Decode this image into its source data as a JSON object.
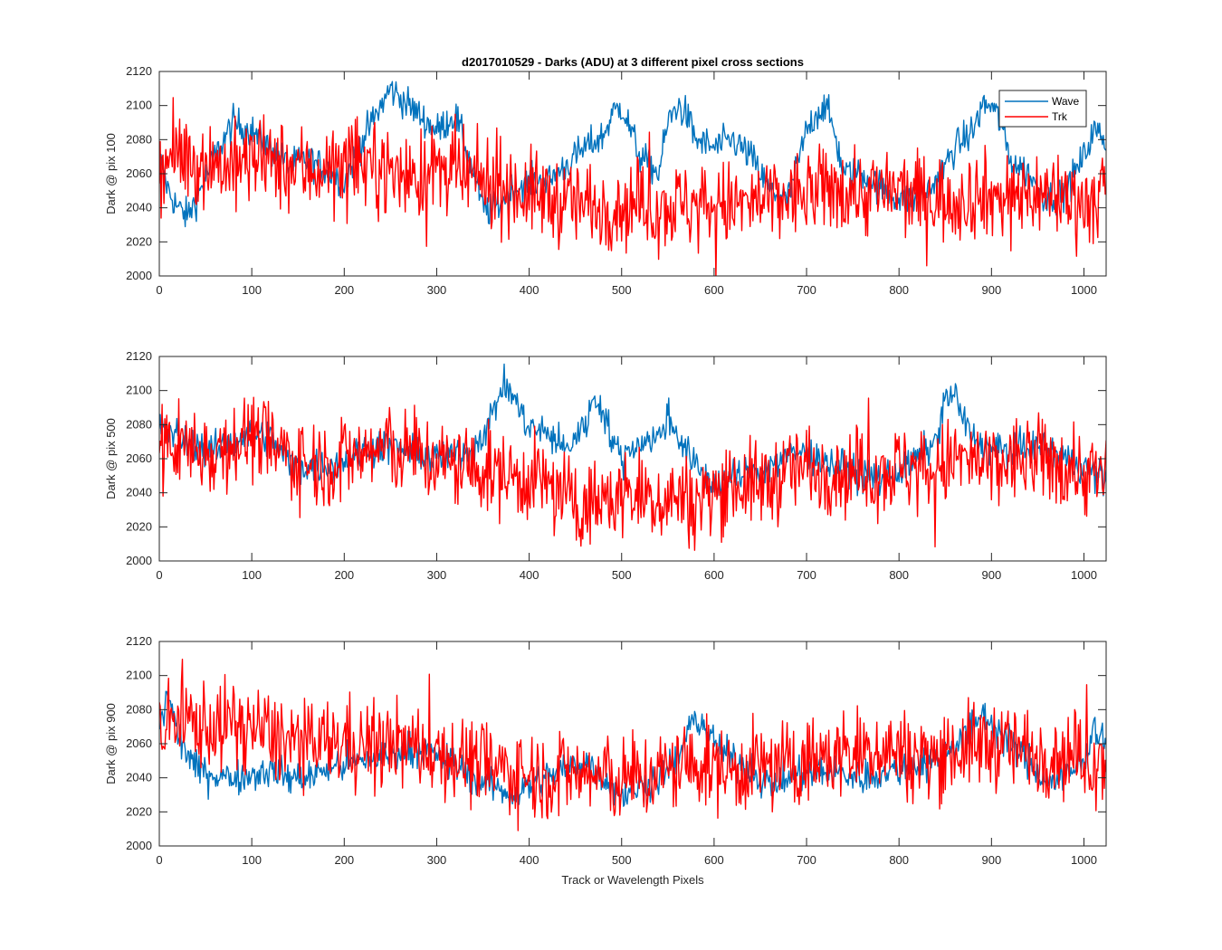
{
  "figure": {
    "title": "d2017010529 - Darks (ADU) at 3 different pixel cross sections",
    "xlabel": "Track or Wavelength Pixels"
  },
  "legend": {
    "placement": "top-right of first subplot",
    "entries": [
      {
        "name": "Wave",
        "color": "#0072BD"
      },
      {
        "name": "Trk",
        "color": "#FF0000"
      }
    ]
  },
  "chart_data": [
    {
      "type": "line",
      "title": "d2017010529 - Darks (ADU) at 3 different pixel cross sections",
      "xlabel": "",
      "ylabel": "Dark @ pix 100",
      "xlim": [
        0,
        1024
      ],
      "ylim": [
        2000,
        2120
      ],
      "xticks": [
        0,
        100,
        200,
        300,
        400,
        500,
        600,
        700,
        800,
        900,
        1000
      ],
      "yticks": [
        2000,
        2020,
        2040,
        2060,
        2080,
        2100,
        2120
      ],
      "grid": false,
      "series": [
        {
          "name": "Wave",
          "color": "#0072BD",
          "x": [
            0,
            10,
            20,
            30,
            40,
            60,
            80,
            100,
            120,
            140,
            160,
            180,
            200,
            220,
            240,
            250,
            260,
            280,
            300,
            320,
            340,
            350,
            360,
            380,
            400,
            420,
            430,
            440,
            460,
            480,
            490,
            500,
            510,
            520,
            540,
            550,
            560,
            570,
            580,
            600,
            620,
            640,
            660,
            680,
            700,
            710,
            720,
            730,
            740,
            760,
            780,
            800,
            820,
            840,
            860,
            880,
            890,
            900,
            910,
            920,
            940,
            960,
            980,
            1000,
            1010,
            1020,
            1024
          ],
          "y": [
            2070,
            2050,
            2040,
            2035,
            2045,
            2070,
            2090,
            2085,
            2075,
            2065,
            2068,
            2063,
            2055,
            2080,
            2100,
            2110,
            2105,
            2095,
            2085,
            2095,
            2060,
            2040,
            2038,
            2050,
            2055,
            2055,
            2060,
            2065,
            2075,
            2082,
            2095,
            2100,
            2085,
            2070,
            2060,
            2090,
            2100,
            2095,
            2080,
            2075,
            2080,
            2070,
            2050,
            2045,
            2085,
            2095,
            2100,
            2085,
            2060,
            2060,
            2052,
            2045,
            2045,
            2055,
            2075,
            2085,
            2100,
            2100,
            2090,
            2068,
            2060,
            2045,
            2050,
            2070,
            2085,
            2082,
            2078
          ]
        },
        {
          "name": "Trk",
          "color": "#FF0000",
          "x": [
            0,
            20,
            40,
            60,
            80,
            100,
            120,
            140,
            160,
            180,
            200,
            220,
            240,
            260,
            280,
            300,
            320,
            340,
            360,
            380,
            400,
            420,
            440,
            460,
            480,
            500,
            520,
            540,
            560,
            580,
            600,
            620,
            640,
            660,
            680,
            700,
            720,
            740,
            760,
            780,
            800,
            820,
            840,
            860,
            880,
            900,
            920,
            940,
            960,
            980,
            1000,
            1024
          ],
          "y": [
            2065,
            2070,
            2068,
            2066,
            2064,
            2068,
            2066,
            2064,
            2062,
            2064,
            2063,
            2066,
            2064,
            2060,
            2058,
            2062,
            2060,
            2056,
            2054,
            2052,
            2048,
            2046,
            2043,
            2042,
            2042,
            2041,
            2043,
            2040,
            2042,
            2041,
            2043,
            2041,
            2042,
            2044,
            2046,
            2048,
            2050,
            2052,
            2048,
            2050,
            2049,
            2047,
            2046,
            2045,
            2048,
            2047,
            2046,
            2049,
            2048,
            2047,
            2044,
            2044
          ]
        }
      ]
    },
    {
      "type": "line",
      "title": "",
      "xlabel": "",
      "ylabel": "Dark @ pix 500",
      "xlim": [
        0,
        1024
      ],
      "ylim": [
        2000,
        2120
      ],
      "xticks": [
        0,
        100,
        200,
        300,
        400,
        500,
        600,
        700,
        800,
        900,
        1000
      ],
      "yticks": [
        2000,
        2020,
        2040,
        2060,
        2080,
        2100,
        2120
      ],
      "grid": false,
      "series": [
        {
          "name": "Wave",
          "color": "#0072BD",
          "x": [
            0,
            20,
            40,
            60,
            80,
            100,
            120,
            140,
            160,
            180,
            200,
            220,
            240,
            260,
            280,
            300,
            320,
            340,
            360,
            370,
            380,
            390,
            400,
            420,
            440,
            460,
            470,
            480,
            490,
            500,
            510,
            520,
            540,
            550,
            560,
            580,
            600,
            620,
            640,
            660,
            680,
            700,
            720,
            740,
            760,
            780,
            800,
            820,
            840,
            850,
            860,
            870,
            880,
            900,
            920,
            940,
            960,
            980,
            1000,
            1024
          ],
          "y": [
            2080,
            2072,
            2068,
            2064,
            2070,
            2075,
            2072,
            2058,
            2055,
            2056,
            2058,
            2065,
            2068,
            2066,
            2063,
            2060,
            2062,
            2066,
            2085,
            2102,
            2100,
            2088,
            2078,
            2075,
            2065,
            2080,
            2095,
            2090,
            2070,
            2060,
            2066,
            2070,
            2072,
            2085,
            2075,
            2055,
            2045,
            2048,
            2052,
            2056,
            2062,
            2064,
            2058,
            2055,
            2050,
            2048,
            2052,
            2060,
            2070,
            2095,
            2098,
            2082,
            2072,
            2066,
            2064,
            2066,
            2066,
            2060,
            2055,
            2048
          ]
        },
        {
          "name": "Trk",
          "color": "#FF0000",
          "x": [
            0,
            20,
            40,
            60,
            80,
            100,
            120,
            140,
            160,
            180,
            200,
            220,
            240,
            260,
            280,
            300,
            320,
            340,
            360,
            380,
            400,
            420,
            440,
            460,
            480,
            500,
            520,
            540,
            560,
            580,
            600,
            620,
            640,
            660,
            680,
            700,
            720,
            740,
            760,
            780,
            800,
            820,
            840,
            860,
            880,
            900,
            920,
            940,
            960,
            980,
            1000,
            1024
          ],
          "y": [
            2066,
            2068,
            2066,
            2064,
            2070,
            2074,
            2068,
            2062,
            2058,
            2058,
            2060,
            2063,
            2066,
            2064,
            2062,
            2058,
            2056,
            2054,
            2052,
            2050,
            2048,
            2046,
            2036,
            2032,
            2036,
            2038,
            2040,
            2036,
            2038,
            2034,
            2042,
            2046,
            2044,
            2046,
            2052,
            2056,
            2054,
            2052,
            2053,
            2052,
            2055,
            2054,
            2053,
            2060,
            2058,
            2054,
            2058,
            2060,
            2058,
            2056,
            2052,
            2048
          ]
        }
      ]
    },
    {
      "type": "line",
      "title": "",
      "xlabel": "Track or Wavelength Pixels",
      "ylabel": "Dark @ pix 900",
      "xlim": [
        0,
        1024
      ],
      "ylim": [
        2000,
        2120
      ],
      "xticks": [
        0,
        100,
        200,
        300,
        400,
        500,
        600,
        700,
        800,
        900,
        1000
      ],
      "yticks": [
        2000,
        2020,
        2040,
        2060,
        2080,
        2100,
        2120
      ],
      "grid": false,
      "series": [
        {
          "name": "Wave",
          "color": "#0072BD",
          "x": [
            0,
            10,
            20,
            40,
            60,
            80,
            100,
            120,
            140,
            160,
            180,
            200,
            220,
            240,
            260,
            280,
            300,
            320,
            340,
            360,
            380,
            400,
            420,
            440,
            460,
            480,
            500,
            520,
            540,
            560,
            570,
            580,
            590,
            600,
            620,
            640,
            660,
            680,
            700,
            720,
            740,
            760,
            780,
            800,
            820,
            840,
            860,
            880,
            890,
            900,
            920,
            940,
            960,
            980,
            1000,
            1010,
            1024
          ],
          "y": [
            2070,
            2090,
            2065,
            2045,
            2042,
            2040,
            2042,
            2045,
            2040,
            2040,
            2045,
            2048,
            2050,
            2052,
            2055,
            2058,
            2052,
            2048,
            2040,
            2035,
            2030,
            2035,
            2040,
            2045,
            2050,
            2040,
            2030,
            2035,
            2040,
            2050,
            2065,
            2075,
            2070,
            2060,
            2050,
            2045,
            2035,
            2040,
            2042,
            2044,
            2042,
            2040,
            2042,
            2045,
            2048,
            2050,
            2060,
            2070,
            2078,
            2072,
            2060,
            2050,
            2038,
            2040,
            2050,
            2070,
            2062
          ]
        },
        {
          "name": "Trk",
          "color": "#FF0000",
          "x": [
            0,
            20,
            40,
            60,
            80,
            100,
            120,
            140,
            160,
            180,
            200,
            220,
            240,
            260,
            280,
            300,
            320,
            340,
            360,
            380,
            400,
            420,
            440,
            460,
            480,
            500,
            520,
            540,
            560,
            580,
            600,
            620,
            640,
            660,
            680,
            700,
            720,
            740,
            760,
            780,
            800,
            820,
            840,
            860,
            880,
            900,
            920,
            940,
            960,
            980,
            1000,
            1024
          ],
          "y": [
            2066,
            2075,
            2072,
            2070,
            2072,
            2070,
            2066,
            2062,
            2058,
            2060,
            2062,
            2060,
            2058,
            2060,
            2058,
            2056,
            2052,
            2050,
            2046,
            2044,
            2042,
            2042,
            2043,
            2042,
            2040,
            2038,
            2040,
            2042,
            2046,
            2048,
            2046,
            2044,
            2046,
            2048,
            2046,
            2050,
            2052,
            2054,
            2056,
            2058,
            2055,
            2052,
            2054,
            2056,
            2058,
            2060,
            2058,
            2056,
            2055,
            2054,
            2052,
            2050
          ]
        }
      ]
    }
  ]
}
